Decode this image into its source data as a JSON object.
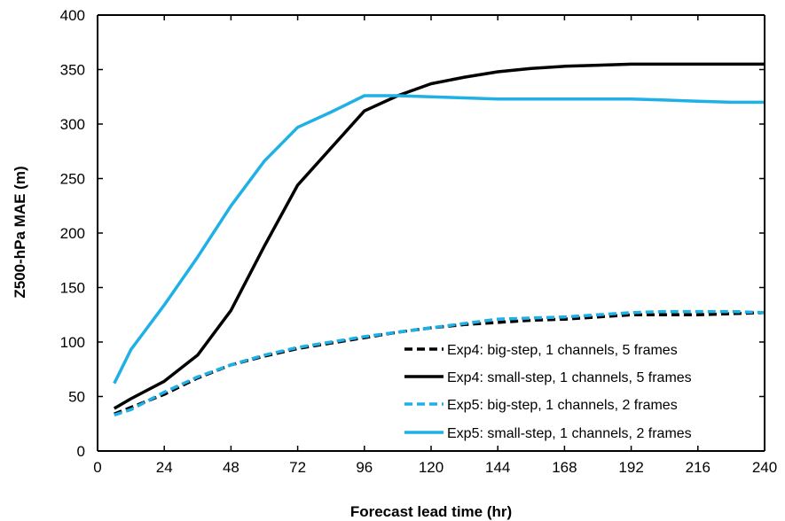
{
  "chart_data": {
    "type": "line",
    "xlabel": "Forecast lead time (hr)",
    "ylabel": "Z500-hPa MAE (m)",
    "xlim": [
      0,
      240
    ],
    "ylim": [
      0,
      400
    ],
    "x_ticks": [
      0,
      24,
      48,
      72,
      96,
      120,
      144,
      168,
      192,
      216,
      240
    ],
    "y_ticks": [
      0,
      50,
      100,
      150,
      200,
      250,
      300,
      350,
      400
    ],
    "grid": false,
    "legend_position": "bottom-right",
    "series": [
      {
        "name": "Exp4: big-step, 1 channels, 5 frames",
        "color": "#000000",
        "style": "dashed",
        "x": [
          6,
          12,
          24,
          36,
          48,
          60,
          72,
          84,
          96,
          108,
          120,
          132,
          144,
          156,
          168,
          180,
          192,
          204,
          216,
          228,
          240
        ],
        "y": [
          34,
          40,
          52,
          67,
          79,
          87,
          94,
          99,
          104,
          109,
          113,
          116,
          118,
          120,
          121,
          123,
          125,
          125,
          125,
          126,
          127
        ]
      },
      {
        "name": "Exp4: small-step, 1 channels, 5 frames",
        "color": "#000000",
        "style": "solid",
        "x": [
          6,
          12,
          24,
          36,
          48,
          60,
          72,
          84,
          96,
          108,
          120,
          132,
          144,
          156,
          168,
          180,
          192,
          204,
          216,
          228,
          240
        ],
        "y": [
          39,
          48,
          64,
          88,
          129,
          188,
          244,
          278,
          312,
          326,
          337,
          343,
          348,
          351,
          353,
          354,
          355,
          355,
          355,
          355,
          355
        ]
      },
      {
        "name": "Exp5: big-step, 1 channels, 2 frames",
        "color": "#1fb0e6",
        "style": "dashed",
        "x": [
          6,
          12,
          24,
          36,
          48,
          60,
          72,
          84,
          96,
          108,
          120,
          132,
          144,
          156,
          168,
          180,
          192,
          204,
          216,
          228,
          240
        ],
        "y": [
          33,
          38,
          54,
          68,
          79,
          88,
          95,
          100,
          105,
          109,
          113,
          117,
          121,
          122,
          123,
          125,
          127,
          128,
          128,
          128,
          127
        ]
      },
      {
        "name": "Exp5: small-step, 1 channels, 2 frames",
        "color": "#1fb0e6",
        "style": "solid",
        "x": [
          6,
          12,
          24,
          36,
          48,
          60,
          72,
          84,
          96,
          108,
          120,
          132,
          144,
          156,
          168,
          180,
          192,
          204,
          216,
          228,
          240
        ],
        "y": [
          62,
          93,
          134,
          178,
          225,
          266,
          297,
          311,
          326,
          326,
          325,
          324,
          323,
          323,
          323,
          323,
          323,
          322,
          321,
          320,
          320
        ]
      }
    ]
  }
}
